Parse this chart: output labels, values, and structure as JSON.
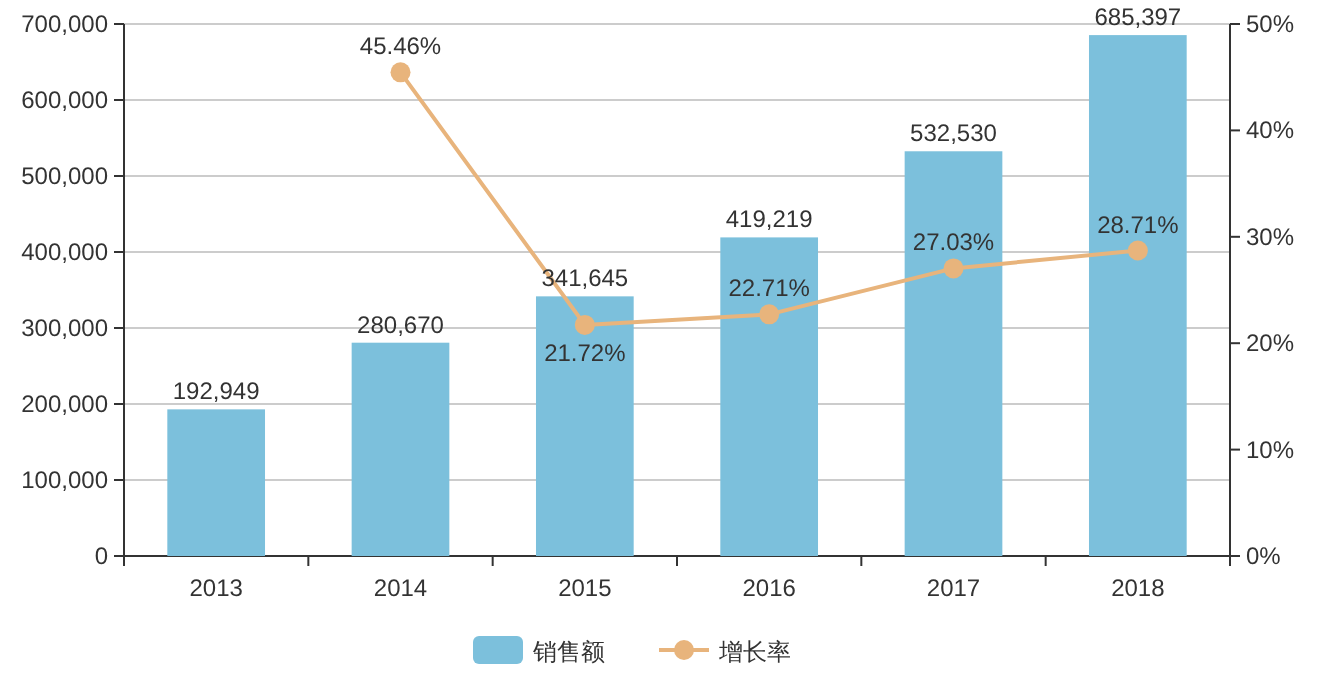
{
  "chart_data": {
    "type": "bar",
    "categories": [
      "2013",
      "2014",
      "2015",
      "2016",
      "2017",
      "2018"
    ],
    "series": [
      {
        "name": "销售额",
        "color": "#7cc0dc",
        "values": [
          192949,
          280670,
          341645,
          419219,
          532530,
          685397
        ],
        "value_labels": [
          "192,949",
          "280,670",
          "341,645",
          "419,219",
          "532,530",
          "685,397"
        ]
      },
      {
        "name": "增长率",
        "type": "line",
        "axis": "y2",
        "color": "#e8b47c",
        "values": [
          null,
          45.46,
          21.72,
          22.71,
          27.03,
          28.71
        ],
        "value_labels": [
          null,
          "45.46%",
          "21.72%",
          "22.71%",
          "27.03%",
          "28.71%"
        ]
      }
    ],
    "ylim": [
      0,
      700000
    ],
    "yticks": [
      0,
      {
        "value": 100000,
        "label": "100,000"
      },
      {
        "value": 200000,
        "label": "200,000"
      },
      {
        "value": 300000,
        "label": "300,000"
      },
      {
        "value": 400000,
        "label": "400,000"
      },
      {
        "value": 500000,
        "label": "500,000"
      },
      {
        "value": 600000,
        "label": "600,000"
      },
      {
        "value": 700000,
        "label": "700,000"
      }
    ],
    "y2lim": [
      0,
      50
    ],
    "y2ticks": [
      {
        "value": 0,
        "label": "0%"
      },
      {
        "value": 10,
        "label": "10%"
      },
      {
        "value": 20,
        "label": "20%"
      },
      {
        "value": 30,
        "label": "30%"
      },
      {
        "value": 40,
        "label": "40%"
      },
      {
        "value": 50,
        "label": "50%"
      }
    ],
    "grid": "y",
    "legend": "bottom",
    "marker": "circle",
    "line_style": "solid"
  }
}
